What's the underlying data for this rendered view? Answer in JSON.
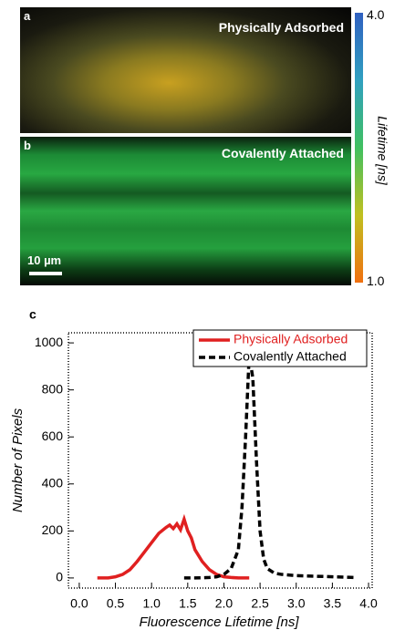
{
  "panels": [
    {
      "label": "a",
      "title": "Physically Adsorbed"
    },
    {
      "label": "b",
      "title": "Covalently Attached",
      "scale_bar": "10 µm"
    }
  ],
  "colorbar": {
    "title": "Lifetime [ns]",
    "max_label": "4.0",
    "min_label": "1.0"
  },
  "chart_data": {
    "type": "line",
    "panel_label": "c",
    "x_label": "Fluorescence Lifetime [ns]",
    "y_label": "Number of Pixels",
    "xlim": [
      -0.15,
      4.05
    ],
    "ylim": [
      -43,
      1043
    ],
    "xticks": [
      {
        "value": 0,
        "label": "0.0"
      },
      0.5,
      {
        "value": 1,
        "label": "1.0"
      },
      1.5,
      {
        "value": 2,
        "label": "2.0"
      },
      2.5,
      {
        "value": 3,
        "label": "3.0"
      },
      3.5,
      {
        "value": 4,
        "label": "4.0"
      }
    ],
    "yticks": [
      0,
      200,
      400,
      600,
      800,
      1000
    ],
    "legend": "top-right",
    "series": [
      {
        "name": "Physically Adsorbed",
        "color": "#e02020",
        "style": "solid",
        "x": [
          0.25,
          0.4,
          0.5,
          0.6,
          0.7,
          0.8,
          0.9,
          1.0,
          1.1,
          1.2,
          1.25,
          1.3,
          1.35,
          1.4,
          1.45,
          1.5,
          1.55,
          1.6,
          1.7,
          1.8,
          1.9,
          2.0,
          2.1,
          2.2,
          2.35
        ],
        "values": [
          0,
          0,
          5,
          15,
          35,
          70,
          110,
          150,
          190,
          215,
          225,
          210,
          230,
          205,
          250,
          200,
          170,
          120,
          70,
          35,
          15,
          5,
          2,
          0,
          0
        ]
      },
      {
        "name": "Covalently Attached",
        "color": "#000000",
        "style": "dashed",
        "x": [
          1.45,
          1.6,
          1.8,
          1.9,
          2.0,
          2.1,
          2.2,
          2.25,
          2.3,
          2.35,
          2.4,
          2.45,
          2.5,
          2.55,
          2.6,
          2.7,
          2.8,
          3.0,
          3.2,
          3.5,
          3.8
        ],
        "values": [
          0,
          0,
          2,
          5,
          15,
          40,
          120,
          300,
          600,
          950,
          850,
          500,
          200,
          80,
          40,
          20,
          15,
          10,
          8,
          5,
          2
        ]
      }
    ]
  }
}
